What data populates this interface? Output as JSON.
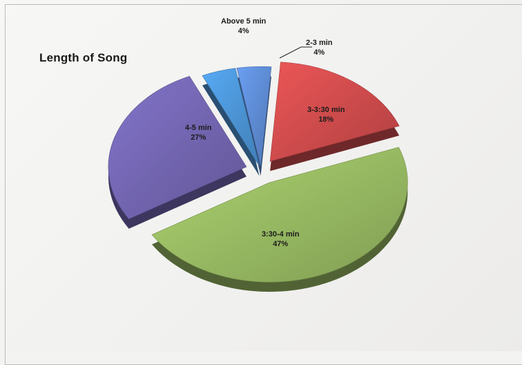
{
  "chart_data": {
    "type": "pie",
    "title": "Length of Song",
    "slices": [
      {
        "label": "2-3 min",
        "value": 4,
        "value_label": "4%",
        "color": "#5b87cd"
      },
      {
        "label": "3-3:30 min",
        "value": 18,
        "value_label": "18%",
        "color": "#c8494a"
      },
      {
        "label": "3:30-4 min",
        "value": 47,
        "value_label": "47%",
        "color": "#93b45f"
      },
      {
        "label": "4-5 min",
        "value": 27,
        "value_label": "27%",
        "color": "#6f62ab"
      },
      {
        "label": "Above 5 min",
        "value": 4,
        "value_label": "4%",
        "color": "#4a90d0"
      }
    ],
    "style": "3d-exploded"
  }
}
